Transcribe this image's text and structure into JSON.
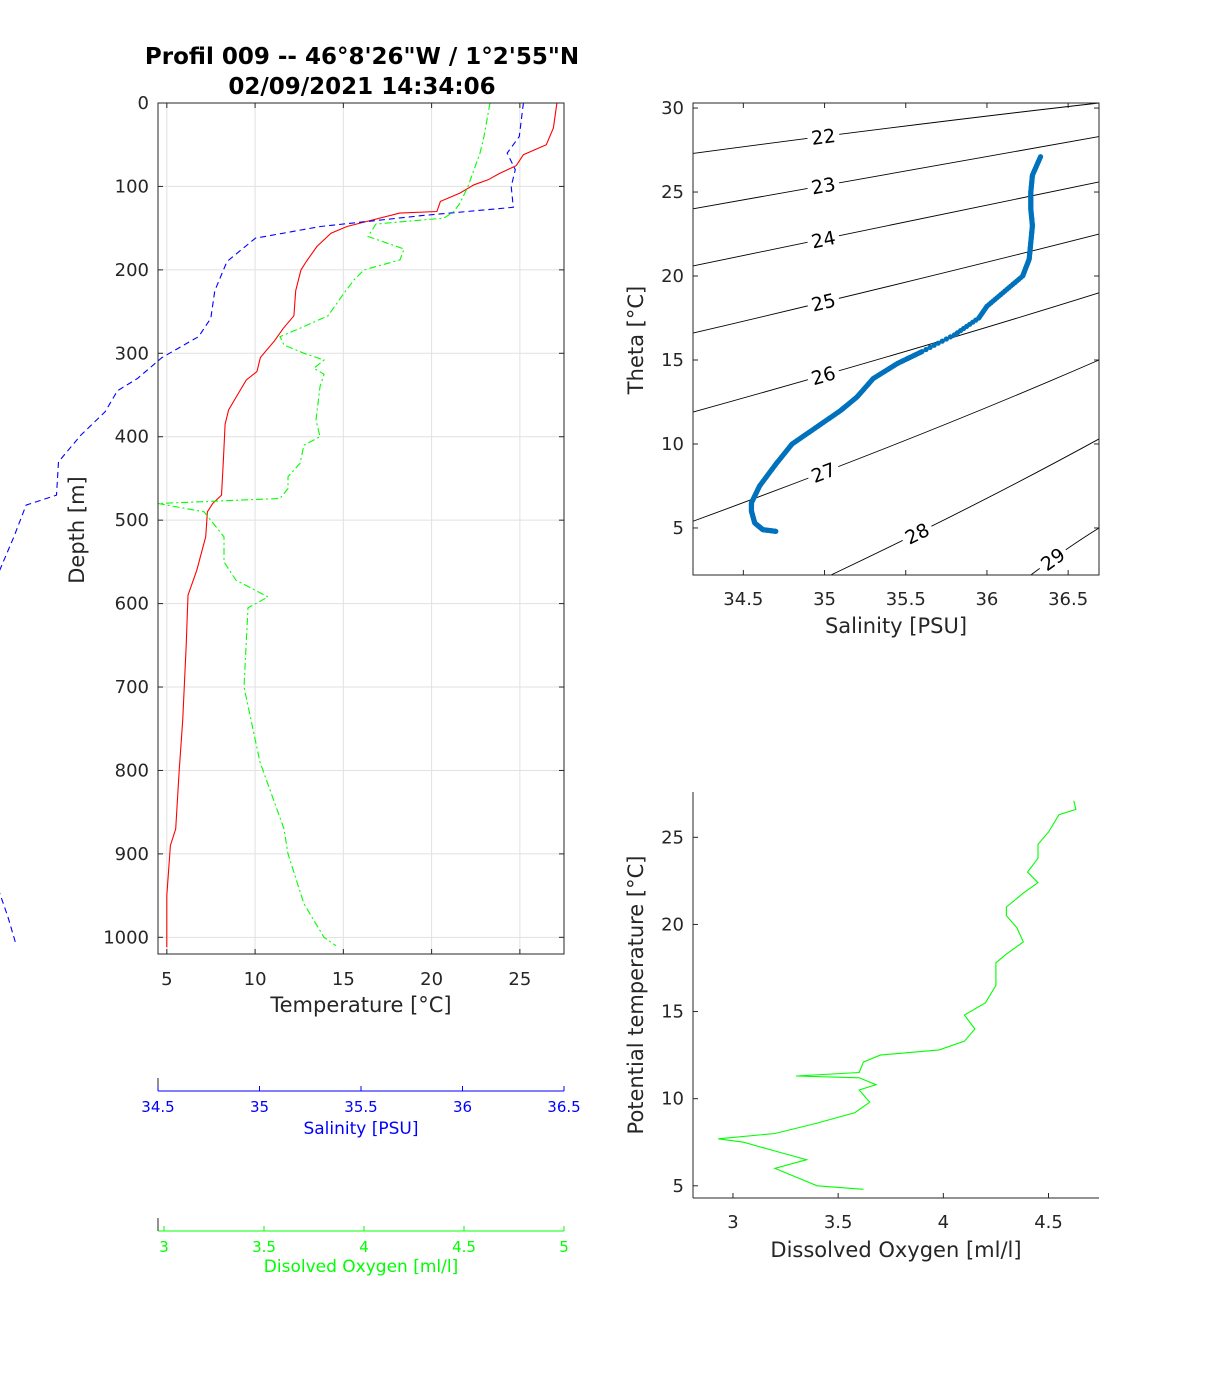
{
  "chart_data": [
    {
      "id": "profile",
      "type": "line",
      "title": [
        "Profil 009 -- 46°8'26\"W / 1°2'55\"N",
        "02/09/2021 14:34:06"
      ],
      "xlabel": "Temperature [°C]",
      "ylabel": "Depth [m]",
      "xlim": [
        4.5,
        27.5
      ],
      "ylim": [
        1020,
        0
      ],
      "x_reversed_axis": "depth increases downward",
      "grid": true,
      "xticks": [
        5,
        10,
        15,
        20,
        25
      ],
      "yticks": [
        0,
        100,
        200,
        300,
        400,
        500,
        600,
        700,
        800,
        900,
        1000
      ],
      "secondary_axes": [
        {
          "label": "Salinity [PSU]",
          "lim": [
            34.5,
            36.5
          ],
          "ticks": [
            34.5,
            35,
            35.5,
            36,
            36.5
          ],
          "color": "#0000ff"
        },
        {
          "label": "Disolved Oxygen [ml/l]",
          "lim": [
            2.97,
            5
          ],
          "ticks": [
            3,
            3.5,
            4,
            4.5,
            5
          ],
          "color": "#00ff00"
        }
      ],
      "series": [
        {
          "axis": "temperature",
          "color": "#ff0000",
          "style": "solid",
          "points": [
            [
              27.1,
              0
            ],
            [
              26.9,
              30
            ],
            [
              26.5,
              50
            ],
            [
              25.2,
              62
            ],
            [
              24.8,
              75
            ],
            [
              23.8,
              85
            ],
            [
              23.2,
              92
            ],
            [
              22.4,
              98
            ],
            [
              21.6,
              108
            ],
            [
              20.5,
              118
            ],
            [
              20.3,
              130
            ],
            [
              18.2,
              132
            ],
            [
              15.2,
              148
            ],
            [
              14.3,
              156
            ],
            [
              13.5,
              172
            ],
            [
              12.9,
              190
            ],
            [
              12.6,
              200
            ],
            [
              12.3,
              225
            ],
            [
              12.2,
              255
            ],
            [
              11.6,
              270
            ],
            [
              11.1,
              285
            ],
            [
              10.3,
              305
            ],
            [
              10.1,
              322
            ],
            [
              9.5,
              332
            ],
            [
              9.0,
              350
            ],
            [
              8.5,
              368
            ],
            [
              8.3,
              385
            ],
            [
              8.2,
              430
            ],
            [
              8.1,
              470
            ],
            [
              7.6,
              480
            ],
            [
              7.3,
              490
            ],
            [
              7.2,
              520
            ],
            [
              6.7,
              560
            ],
            [
              6.2,
              590
            ],
            [
              6.1,
              650
            ],
            [
              5.9,
              740
            ],
            [
              5.7,
              800
            ],
            [
              5.5,
              870
            ],
            [
              5.2,
              890
            ],
            [
              5.0,
              950
            ],
            [
              5.0,
              1012
            ]
          ]
        },
        {
          "axis": "salinity",
          "color": "#0000ff",
          "style": "dashed",
          "points": [
            [
              36.3,
              0
            ],
            [
              36.28,
              40
            ],
            [
              36.22,
              60
            ],
            [
              36.26,
              80
            ],
            [
              36.24,
              100
            ],
            [
              36.25,
              125
            ],
            [
              35.8,
              135
            ],
            [
              35.3,
              148
            ],
            [
              34.98,
              162
            ],
            [
              34.84,
              190
            ],
            [
              34.78,
              225
            ],
            [
              34.76,
              258
            ],
            [
              34.7,
              280
            ],
            [
              34.52,
              305
            ],
            [
              34.4,
              330
            ],
            [
              34.3,
              345
            ],
            [
              34.24,
              370
            ],
            [
              34.12,
              398
            ],
            [
              34.01,
              430
            ],
            [
              34.0,
              470
            ],
            [
              33.85,
              482
            ],
            [
              33.79,
              520
            ],
            [
              33.72,
              560
            ],
            [
              33.67,
              590
            ],
            [
              33.64,
              650
            ],
            [
              33.61,
              800
            ],
            [
              33.61,
              870
            ],
            [
              33.66,
              900
            ],
            [
              33.71,
              940
            ],
            [
              33.76,
              975
            ],
            [
              33.8,
              1008
            ]
          ]
        },
        {
          "axis": "oxygen",
          "color": "#00ff00",
          "style": "dashdot",
          "points": [
            [
              4.63,
              0
            ],
            [
              4.6,
              40
            ],
            [
              4.58,
              60
            ],
            [
              4.52,
              100
            ],
            [
              4.48,
              120
            ],
            [
              4.45,
              130
            ],
            [
              4.4,
              138
            ],
            [
              4.06,
              145
            ],
            [
              4.02,
              160
            ],
            [
              4.2,
              175
            ],
            [
              4.18,
              188
            ],
            [
              4.0,
              200
            ],
            [
              3.95,
              212
            ],
            [
              3.9,
              228
            ],
            [
              3.82,
              255
            ],
            [
              3.68,
              270
            ],
            [
              3.58,
              280
            ],
            [
              3.6,
              290
            ],
            [
              3.7,
              300
            ],
            [
              3.8,
              308
            ],
            [
              3.75,
              318
            ],
            [
              3.8,
              325
            ],
            [
              3.78,
              340
            ],
            [
              3.76,
              380
            ],
            [
              3.78,
              400
            ],
            [
              3.7,
              410
            ],
            [
              3.68,
              432
            ],
            [
              3.62,
              448
            ],
            [
              3.62,
              462
            ],
            [
              3.58,
              474
            ],
            [
              2.97,
              480
            ],
            [
              3.2,
              490
            ],
            [
              3.3,
              520
            ],
            [
              3.3,
              550
            ],
            [
              3.36,
              572
            ],
            [
              3.52,
              592
            ],
            [
              3.42,
              605
            ],
            [
              3.4,
              700
            ],
            [
              3.48,
              790
            ],
            [
              3.6,
              870
            ],
            [
              3.62,
              900
            ],
            [
              3.7,
              960
            ],
            [
              3.8,
              1000
            ],
            [
              3.86,
              1010
            ]
          ]
        }
      ]
    },
    {
      "id": "ts",
      "type": "scatter",
      "xlabel": "Salinity [PSU]",
      "ylabel": "Theta [°C]",
      "xlim": [
        34.19,
        36.69
      ],
      "ylim": [
        2.2,
        30.3
      ],
      "xticks": [
        34.5,
        35,
        35.5,
        36,
        36.5
      ],
      "yticks": [
        5,
        10,
        15,
        20,
        25,
        30
      ],
      "grid": false,
      "color": "#0072bd",
      "density_contours": [
        {
          "label": "22",
          "sal": [
            34.19,
            36.69
          ],
          "temp": [
            27.3,
            30.3
          ]
        },
        {
          "label": "23",
          "sal": [
            34.19,
            36.69
          ],
          "temp": [
            24.0,
            28.3
          ]
        },
        {
          "label": "24",
          "sal": [
            34.19,
            36.69
          ],
          "temp": [
            20.6,
            25.6
          ]
        },
        {
          "label": "25",
          "sal": [
            34.19,
            36.69
          ],
          "temp": [
            16.6,
            22.5
          ]
        },
        {
          "label": "26",
          "sal": [
            34.19,
            36.69
          ],
          "temp": [
            11.9,
            19.0
          ]
        },
        {
          "label": "27",
          "sal": [
            34.19,
            36.69
          ],
          "temp": [
            5.4,
            15.0
          ]
        },
        {
          "label": "28",
          "sal": [
            35.04,
            36.69
          ],
          "temp": [
            2.2,
            10.3
          ]
        },
        {
          "label": "29",
          "sal": [
            36.27,
            36.69
          ],
          "temp": [
            2.2,
            5.0
          ]
        }
      ],
      "points": [
        [
          36.33,
          27.1
        ],
        [
          36.28,
          26.0
        ],
        [
          36.27,
          25.0
        ],
        [
          36.27,
          24.0
        ],
        [
          36.28,
          23.0
        ],
        [
          36.27,
          22.0
        ],
        [
          36.26,
          21.0
        ],
        [
          36.22,
          20.0
        ],
        [
          36.0,
          18.2
        ],
        [
          35.95,
          17.5
        ],
        [
          35.8,
          16.5
        ],
        [
          35.6,
          15.5
        ],
        [
          35.45,
          14.8
        ],
        [
          35.3,
          13.9
        ],
        [
          35.2,
          12.8
        ],
        [
          35.1,
          12.0
        ],
        [
          34.95,
          11.0
        ],
        [
          34.8,
          10.0
        ],
        [
          34.7,
          8.8
        ],
        [
          34.6,
          7.5
        ],
        [
          34.55,
          6.5
        ],
        [
          34.55,
          6.0
        ],
        [
          34.57,
          5.3
        ],
        [
          34.62,
          4.9
        ],
        [
          34.7,
          4.8
        ]
      ]
    },
    {
      "id": "oxygen_theta",
      "type": "line",
      "xlabel": "Dissolved Oxygen [ml/l]",
      "ylabel": "Potential temperature [°C]",
      "xlim": [
        2.81,
        4.74
      ],
      "ylim": [
        4.3,
        27.6
      ],
      "xticks": [
        3,
        3.5,
        4,
        4.5
      ],
      "yticks": [
        5,
        10,
        15,
        20,
        25
      ],
      "grid": false,
      "color": "#00ff00",
      "points": [
        [
          4.62,
          27.1
        ],
        [
          4.63,
          26.6
        ],
        [
          4.55,
          26.3
        ],
        [
          4.5,
          25.3
        ],
        [
          4.45,
          24.6
        ],
        [
          4.45,
          23.8
        ],
        [
          4.4,
          23.0
        ],
        [
          4.45,
          22.4
        ],
        [
          4.38,
          21.8
        ],
        [
          4.3,
          21.0
        ],
        [
          4.3,
          20.5
        ],
        [
          4.35,
          19.8
        ],
        [
          4.38,
          19.0
        ],
        [
          4.3,
          18.3
        ],
        [
          4.25,
          17.8
        ],
        [
          4.25,
          16.5
        ],
        [
          4.2,
          15.5
        ],
        [
          4.1,
          14.8
        ],
        [
          4.15,
          14.0
        ],
        [
          4.1,
          13.3
        ],
        [
          3.98,
          12.8
        ],
        [
          3.7,
          12.5
        ],
        [
          3.62,
          12.1
        ],
        [
          3.6,
          11.5
        ],
        [
          3.3,
          11.3
        ],
        [
          3.6,
          11.2
        ],
        [
          3.68,
          10.8
        ],
        [
          3.6,
          10.5
        ],
        [
          3.65,
          9.8
        ],
        [
          3.58,
          9.2
        ],
        [
          3.4,
          8.6
        ],
        [
          3.2,
          8.0
        ],
        [
          2.93,
          7.7
        ],
        [
          3.05,
          7.5
        ],
        [
          3.2,
          7.0
        ],
        [
          3.35,
          6.5
        ],
        [
          3.2,
          6.0
        ],
        [
          3.3,
          5.5
        ],
        [
          3.4,
          5.0
        ],
        [
          3.62,
          4.8
        ]
      ]
    }
  ]
}
